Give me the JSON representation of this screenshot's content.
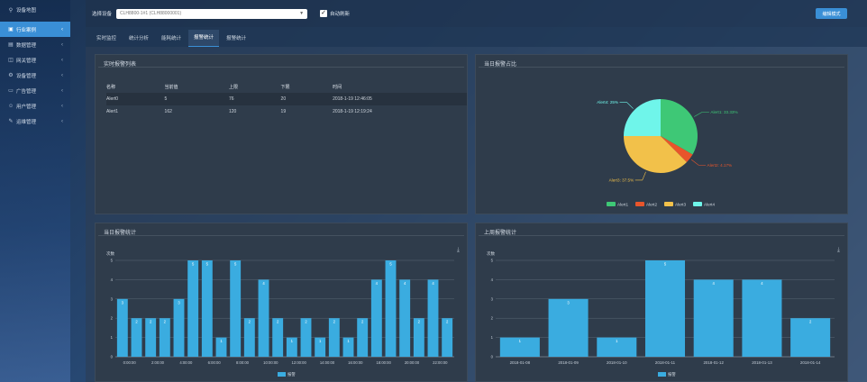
{
  "sidebar": {
    "items": [
      {
        "icon": "map-pin-icon",
        "label": "设备地图",
        "chevron": false,
        "active": false
      },
      {
        "icon": "industry-icon",
        "label": "行业案例",
        "chevron": true,
        "active": true
      },
      {
        "icon": "data-icon",
        "label": "数据管理",
        "chevron": true,
        "active": false
      },
      {
        "icon": "device-icon",
        "label": "网关管理",
        "chevron": true,
        "active": false
      },
      {
        "icon": "gear-icon",
        "label": "设备管理",
        "chevron": true,
        "active": false
      },
      {
        "icon": "monitor-icon",
        "label": "广告管理",
        "chevron": true,
        "active": false
      },
      {
        "icon": "user-icon",
        "label": "用户管理",
        "chevron": true,
        "active": false
      },
      {
        "icon": "wrench-icon",
        "label": "运维管理",
        "chevron": true,
        "active": false
      }
    ]
  },
  "topbar": {
    "device_label": "选择设备",
    "device_value": "CLH8800-1#1 (CLH88000001)",
    "auto_refresh_label": "自动刷新",
    "theme_button": "编辑模式"
  },
  "tabs": [
    "实时监控",
    "统计分析",
    "能耗统计",
    "报警统计",
    "报警统计"
  ],
  "active_tab": 3,
  "realtime": {
    "title": "实时报警列表",
    "headers": [
      "名称",
      "当前值",
      "上限",
      "下限",
      "时间"
    ],
    "rows": [
      [
        "Alert0",
        "5",
        "76",
        "20",
        "2018-1-19 12:46:05"
      ],
      [
        "Alert1",
        "162",
        "120",
        "19",
        "2018-1-19 12:19:24"
      ]
    ]
  },
  "pie_panel": {
    "title": "当日报警占比"
  },
  "today_panel": {
    "title": "当日报警统计"
  },
  "week_panel": {
    "title": "上周报警统计"
  },
  "chart_data": [
    {
      "type": "pie",
      "slices": [
        {
          "name": "Alert1",
          "value": 33.33,
          "label": "Alert1: 33.33%",
          "color": "#3ec876"
        },
        {
          "name": "Alert2",
          "value": 4.17,
          "label": "Alert2: 4.17%",
          "color": "#e8552b"
        },
        {
          "name": "Alert3",
          "value": 37.5,
          "label": "Alert3: 37.5%",
          "color": "#f2c14a"
        },
        {
          "name": "Alert4",
          "value": 25,
          "label": "Alert4: 25%",
          "color": "#6ff5ea"
        }
      ],
      "legend": [
        "Alert1",
        "Alert2",
        "Alert3",
        "Alert4"
      ],
      "legend_placement": "bottom"
    },
    {
      "type": "bar",
      "ylabel": "次数",
      "ylim": [
        0,
        5
      ],
      "yticks": [
        "0",
        "1",
        "2",
        "3",
        "4",
        "5"
      ],
      "x_tick_labels": [
        "0:00:00",
        "2:00:00",
        "4:00:00",
        "6:00:00",
        "8:00:00",
        "10:00:00",
        "12:00:00",
        "14:00:00",
        "16:00:00",
        "18:00:00",
        "20:00:00",
        "22:00:00"
      ],
      "values": [
        3,
        2,
        2,
        2,
        3,
        5,
        5,
        1,
        5,
        2,
        4,
        2,
        1,
        2,
        1,
        2,
        1,
        2,
        4,
        5,
        4,
        2,
        4,
        2
      ],
      "series_name": "报警",
      "color": "#3aace0"
    },
    {
      "type": "bar",
      "ylabel": "次数",
      "ylim": [
        0,
        5
      ],
      "yticks": [
        "0",
        "1",
        "2",
        "3",
        "4",
        "5"
      ],
      "categories": [
        "2018-01-08",
        "2018-01-09",
        "2018-01-10",
        "2018-01-11",
        "2018-01-12",
        "2018-01-13",
        "2018-01-14"
      ],
      "values": [
        1,
        3,
        1,
        5,
        4,
        4,
        2
      ],
      "series_name": "报警",
      "color": "#3aace0"
    }
  ]
}
